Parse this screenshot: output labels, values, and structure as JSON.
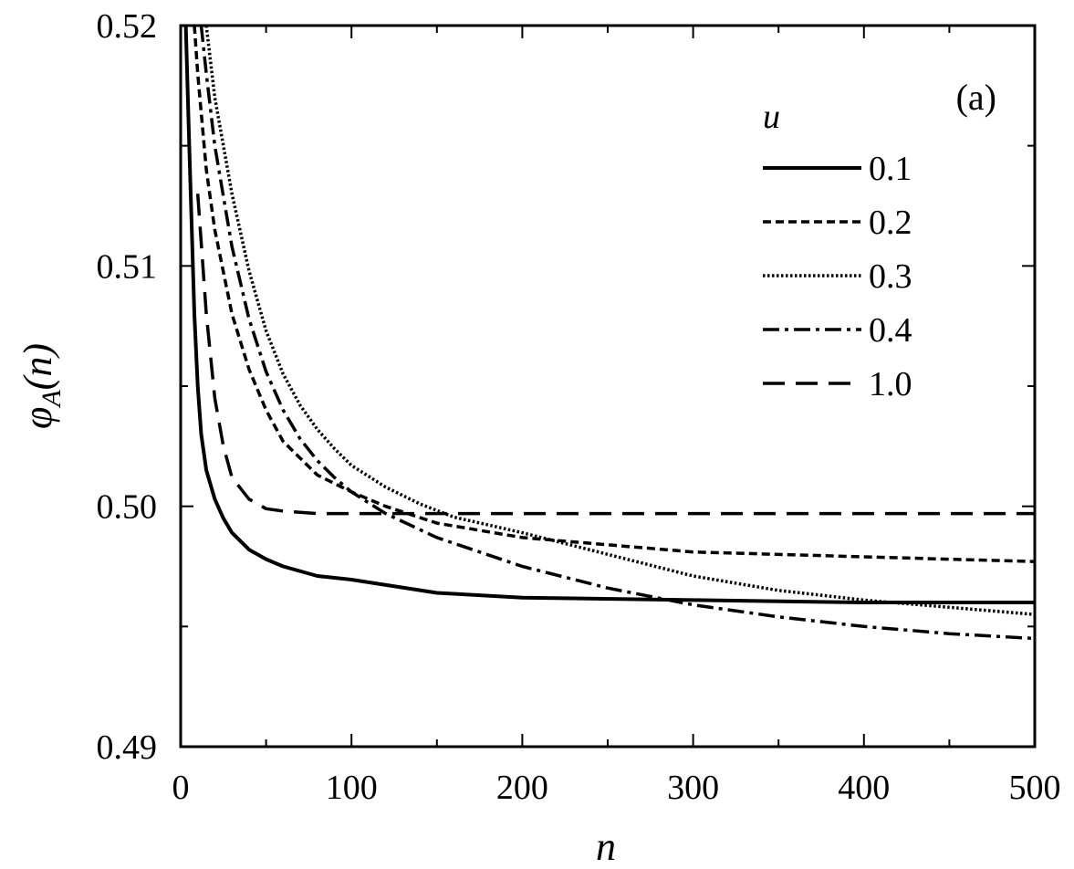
{
  "chart_data": {
    "type": "line",
    "panel_label": "(a)",
    "xlabel": "n",
    "ylabel": {
      "base": "φ",
      "sub": "A",
      "tail": "(n)"
    },
    "xlim": [
      0,
      500
    ],
    "ylim": [
      0.49,
      0.52
    ],
    "x_ticks": [
      "0",
      "100",
      "200",
      "300",
      "400",
      "500"
    ],
    "y_ticks": [
      "0.49",
      "0.50",
      "0.51",
      "0.52"
    ],
    "grid": false,
    "legend": {
      "title": "u",
      "placement": "top-right"
    },
    "series": [
      {
        "name": "0.1",
        "style": "solid",
        "x": [
          3,
          5,
          8,
          10,
          12,
          15,
          20,
          25,
          30,
          40,
          50,
          60,
          80,
          100,
          150,
          200,
          300,
          400,
          500
        ],
        "y": [
          0.52,
          0.515,
          0.508,
          0.505,
          0.503,
          0.5015,
          0.5003,
          0.4995,
          0.4989,
          0.4982,
          0.4978,
          0.4975,
          0.4971,
          0.49695,
          0.4964,
          0.4962,
          0.4961,
          0.496,
          0.496
        ]
      },
      {
        "name": "0.2",
        "style": "dashed",
        "x": [
          8,
          10,
          15,
          20,
          30,
          40,
          50,
          60,
          80,
          100,
          120,
          150,
          200,
          250,
          300,
          400,
          500
        ],
        "y": [
          0.52,
          0.518,
          0.514,
          0.5115,
          0.508,
          0.5057,
          0.504,
          0.5027,
          0.5013,
          0.5006,
          0.5,
          0.4993,
          0.4987,
          0.4984,
          0.4981,
          0.4979,
          0.4977
        ]
      },
      {
        "name": "0.3",
        "style": "dotted",
        "x": [
          15,
          20,
          30,
          40,
          50,
          60,
          70,
          80,
          90,
          100,
          120,
          140,
          160,
          200,
          250,
          300,
          350,
          400,
          450,
          500
        ],
        "y": [
          0.52,
          0.517,
          0.513,
          0.5098,
          0.5073,
          0.5055,
          0.5042,
          0.5032,
          0.5024,
          0.5017,
          0.5008,
          0.5001,
          0.49955,
          0.4989,
          0.498,
          0.4971,
          0.4965,
          0.4961,
          0.4958,
          0.4955
        ]
      },
      {
        "name": "0.4",
        "style": "dash-dot",
        "x": [
          12,
          15,
          20,
          30,
          40,
          50,
          60,
          70,
          80,
          90,
          100,
          120,
          150,
          200,
          250,
          300,
          350,
          400,
          450,
          500
        ],
        "y": [
          0.52,
          0.518,
          0.515,
          0.5108,
          0.5078,
          0.5056,
          0.504,
          0.5028,
          0.5019,
          0.5012,
          0.5006,
          0.4997,
          0.4987,
          0.4975,
          0.4966,
          0.4959,
          0.4954,
          0.495,
          0.4947,
          0.4945
        ]
      },
      {
        "name": "1.0",
        "style": "long-dash",
        "x": [
          10,
          15,
          20,
          25,
          30,
          40,
          50,
          60,
          80,
          100,
          200,
          300,
          400,
          500
        ],
        "y": [
          0.513,
          0.508,
          0.5045,
          0.5025,
          0.5012,
          0.5003,
          0.4999,
          0.4998,
          0.4997,
          0.4997,
          0.4997,
          0.4997,
          0.4997,
          0.4997
        ]
      }
    ]
  }
}
